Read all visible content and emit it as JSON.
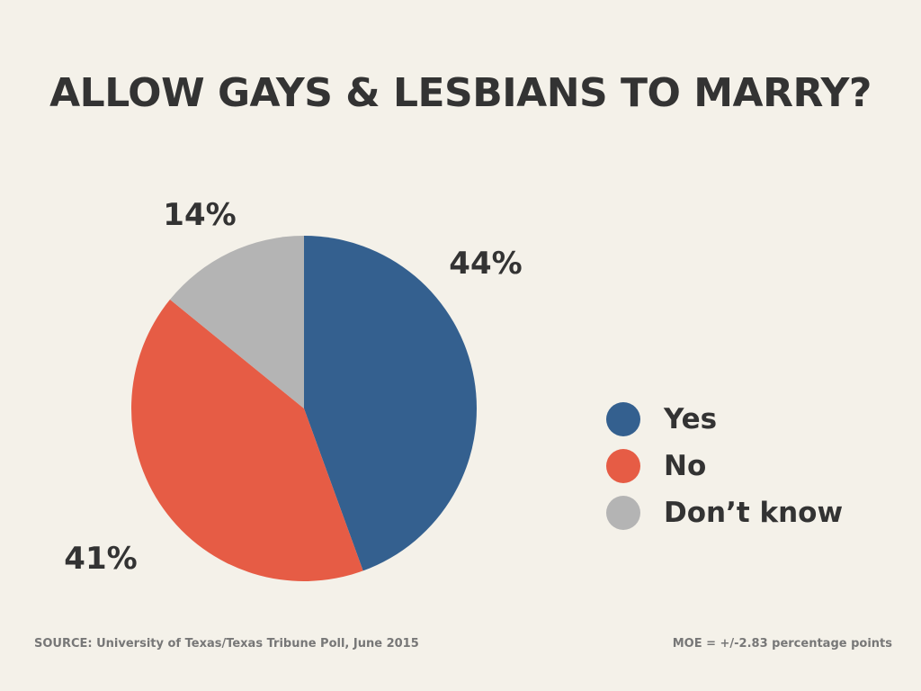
{
  "chart_data": {
    "type": "pie",
    "title": "ALLOW GAYS & LESBIANS TO MARRY?",
    "slices": [
      {
        "label": "Yes",
        "value": 44,
        "display": "44%",
        "color": "#34608f"
      },
      {
        "label": "No",
        "value": 41,
        "display": "41%",
        "color": "#e65c45"
      },
      {
        "label": "Don’t know",
        "value": 14,
        "display": "14%",
        "color": "#b4b4b4"
      }
    ],
    "legend_placement": "right"
  },
  "footer": {
    "source": "SOURCE: University of Texas/Texas Tribune Poll, June 2015",
    "moe": "MOE = +/-2.83 percentage points"
  }
}
